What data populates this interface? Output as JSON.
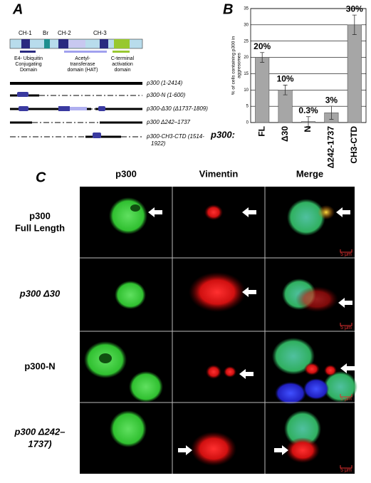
{
  "panel_labels": {
    "a": "A",
    "b": "B",
    "c": "C"
  },
  "domains": {
    "ch1": "CH-1",
    "br": "Br",
    "ch2": "CH-2",
    "ch3": "CH-3"
  },
  "domain_notes": [
    [
      "E4- Ubiquitin",
      "Conjugating",
      "Domain"
    ],
    [
      "Acetyl-",
      "transferase",
      "domain (HAT)"
    ],
    [
      "C-terminal",
      "activation",
      "domain"
    ]
  ],
  "constructs": [
    [
      "p300 (1-2414)"
    ],
    [
      "p300-N (1-600)"
    ],
    [
      "p300-Δ30 (Δ1737-1809)"
    ],
    [
      "p300 Δ242–1737"
    ],
    [
      "p300-CH3-CTD  (1514-",
      "1922)"
    ]
  ],
  "chart_data": {
    "type": "bar",
    "ylabel": [
      "% of cells containing p300 in",
      "aggresomes"
    ],
    "x_prefix": "p300:",
    "categories": [
      "FL",
      "Δ30",
      "N",
      "Δ242-1737",
      "CH3-CTD"
    ],
    "values": [
      20,
      10,
      0.3,
      3,
      30
    ],
    "value_labels": [
      "20%",
      "10%",
      "0.3%",
      "3%",
      "30%"
    ],
    "errors": [
      1.5,
      1.5,
      1.5,
      2,
      3
    ],
    "color": "#a6a6a6",
    "ylim": [
      0,
      35
    ],
    "yticks": [
      0,
      5,
      10,
      15,
      20,
      25,
      30,
      35
    ],
    "grid": true
  },
  "panel_c": {
    "columns": [
      "p300",
      "Vimentin",
      "Merge"
    ],
    "rows": [
      [
        "p300",
        "Full Length"
      ],
      [
        "p300 Δ30"
      ],
      [
        "p300-N"
      ],
      [
        "p300 Δ242–",
        "1737)"
      ]
    ],
    "scale_bar": "5 μm"
  }
}
